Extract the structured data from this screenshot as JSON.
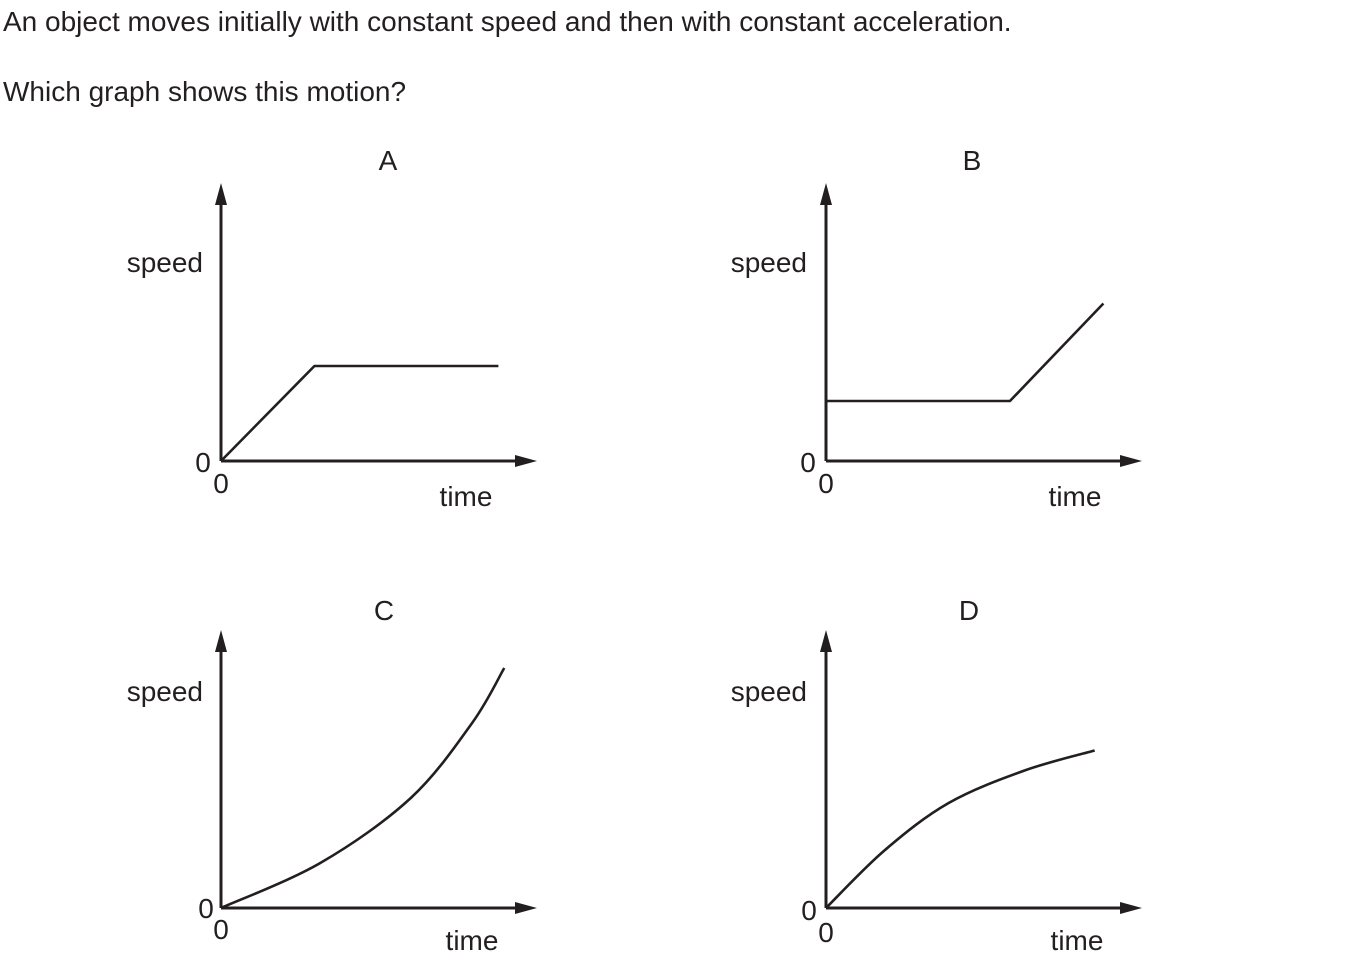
{
  "question": {
    "line1": "An object moves initially with constant speed and then with constant acceleration.",
    "line2": "Which graph shows this motion?"
  },
  "colors": {
    "ink": "#231f20",
    "background": "#ffffff"
  },
  "chart_data": [
    {
      "id": "A",
      "type": "line",
      "title": "A",
      "xlabel": "time",
      "ylabel": "speed",
      "x_origin_label": "0",
      "y_origin_label": "0",
      "xlim": [
        0,
        1
      ],
      "ylim": [
        0,
        1
      ],
      "grid": false,
      "series": [
        {
          "shape": "linear",
          "x": [
            0,
            0.32,
            0.95
          ],
          "y": [
            0,
            0.38,
            0.38
          ]
        }
      ]
    },
    {
      "id": "B",
      "type": "line",
      "title": "B",
      "xlabel": "time",
      "ylabel": "speed",
      "x_origin_label": "0",
      "y_origin_label": "0",
      "xlim": [
        0,
        1
      ],
      "ylim": [
        0,
        1
      ],
      "grid": false,
      "series": [
        {
          "shape": "linear",
          "x": [
            0,
            0.63,
            0.95
          ],
          "y": [
            0.24,
            0.24,
            0.63
          ]
        }
      ]
    },
    {
      "id": "C",
      "type": "line",
      "title": "C",
      "xlabel": "time",
      "ylabel": "speed",
      "x_origin_label": "0",
      "y_origin_label": "0",
      "xlim": [
        0,
        1
      ],
      "ylim": [
        0,
        1
      ],
      "grid": false,
      "series": [
        {
          "shape": "smooth",
          "x": [
            0,
            0.34,
            0.65,
            0.86,
            0.97
          ],
          "y": [
            0,
            0.18,
            0.44,
            0.74,
            0.96
          ]
        }
      ]
    },
    {
      "id": "D",
      "type": "line",
      "title": "D",
      "xlabel": "time",
      "ylabel": "speed",
      "x_origin_label": "0",
      "y_origin_label": "0",
      "xlim": [
        0,
        1
      ],
      "ylim": [
        0,
        1
      ],
      "grid": false,
      "series": [
        {
          "shape": "smooth",
          "x": [
            0,
            0.2,
            0.42,
            0.68,
            0.92
          ],
          "y": [
            0,
            0.23,
            0.42,
            0.55,
            0.63
          ]
        }
      ]
    }
  ]
}
